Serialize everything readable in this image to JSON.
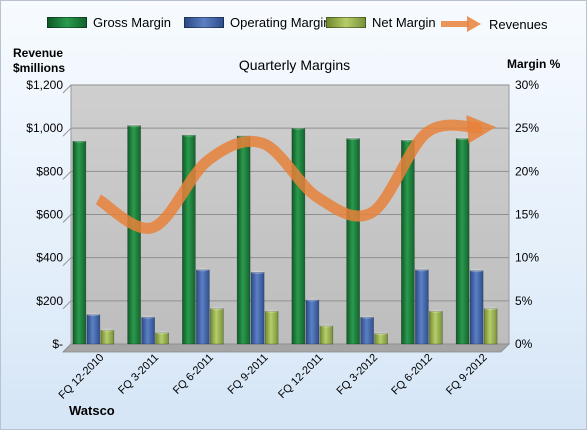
{
  "chart_data": {
    "type": "bar",
    "title": "Quarterly Margins",
    "ylabel_left": "Revenue $millions",
    "ylabel_left_lines": [
      "Revenue",
      "$millions"
    ],
    "ylabel_right": "Margin %",
    "source": "Watsco",
    "categories": [
      "FQ 12-2010",
      "FQ 3-2011",
      "FQ 6-2011",
      "FQ 9-2011",
      "FQ 12-2011",
      "FQ 3-2012",
      "FQ 6-2012",
      "FQ 9-2012"
    ],
    "left_axis": {
      "ylim": [
        0,
        1200
      ],
      "ticks": [
        "$-",
        "$200",
        "$400",
        "$600",
        "$800",
        "$1,000",
        "$1,200"
      ]
    },
    "right_axis": {
      "ylim": [
        0,
        30
      ],
      "ticks": [
        "0%",
        "5%",
        "10%",
        "15%",
        "20%",
        "25%",
        "30%"
      ]
    },
    "series": [
      {
        "name": "Gross Margin",
        "axis": "right",
        "chart_type": "bar",
        "color": "#1d7a3c",
        "values": [
          23.5,
          25.3,
          24.2,
          24.1,
          25.0,
          23.8,
          23.6,
          23.8
        ]
      },
      {
        "name": "Operating Margin",
        "axis": "right",
        "chart_type": "bar",
        "color": "#3e62a8",
        "values": [
          3.4,
          3.1,
          8.6,
          8.3,
          5.1,
          3.1,
          8.6,
          8.5
        ]
      },
      {
        "name": "Net Margin",
        "axis": "right",
        "chart_type": "bar",
        "color": "#96b04a",
        "values": [
          1.6,
          1.3,
          4.1,
          3.8,
          2.1,
          1.2,
          3.8,
          4.1
        ]
      },
      {
        "name": "Revenues",
        "axis": "left",
        "chart_type": "line",
        "color": "#e8813a",
        "values": [
          670,
          540,
          850,
          930,
          680,
          610,
          980,
          1000
        ]
      }
    ],
    "grid": true,
    "legend_position": "top"
  },
  "colors": {
    "plot_background": "#c6c6c6",
    "gridline": "#8f8f8f",
    "floor": "#a5a5a5"
  }
}
